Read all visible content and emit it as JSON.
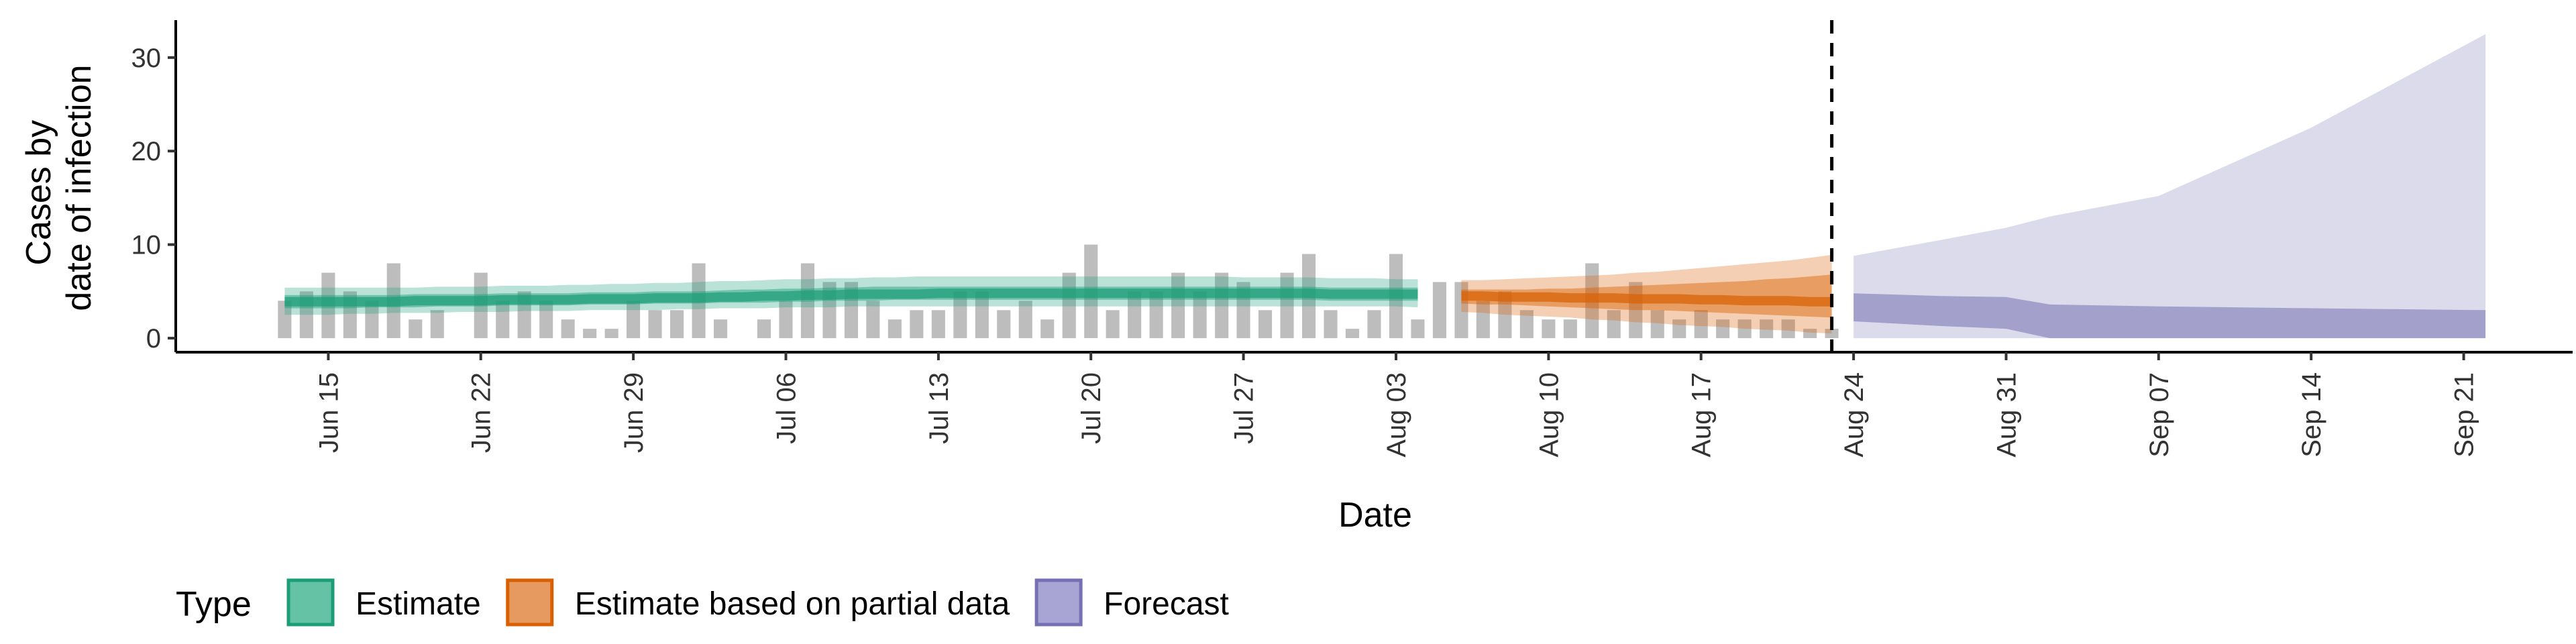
{
  "chart_data": {
    "type": "area",
    "xlabel": "Date",
    "ylabel_lines": [
      "Cases by",
      "date of infection"
    ],
    "x_range": [
      "2020-06-08",
      "2020-09-26"
    ],
    "ylim": [
      -1.5,
      34
    ],
    "yticks": [
      0,
      10,
      20,
      30
    ],
    "xticks": [
      {
        "date": "2020-06-15",
        "label": "Jun 15"
      },
      {
        "date": "2020-06-22",
        "label": "Jun 22"
      },
      {
        "date": "2020-06-29",
        "label": "Jun 29"
      },
      {
        "date": "2020-07-06",
        "label": "Jul 06"
      },
      {
        "date": "2020-07-13",
        "label": "Jul 13"
      },
      {
        "date": "2020-07-20",
        "label": "Jul 20"
      },
      {
        "date": "2020-07-27",
        "label": "Jul 27"
      },
      {
        "date": "2020-08-03",
        "label": "Aug 03"
      },
      {
        "date": "2020-08-10",
        "label": "Aug 10"
      },
      {
        "date": "2020-08-17",
        "label": "Aug 17"
      },
      {
        "date": "2020-08-24",
        "label": "Aug 24"
      },
      {
        "date": "2020-08-31",
        "label": "Aug 31"
      },
      {
        "date": "2020-09-07",
        "label": "Sep 07"
      },
      {
        "date": "2020-09-14",
        "label": "Sep 14"
      },
      {
        "date": "2020-09-21",
        "label": "Sep 21"
      }
    ],
    "forecast_start": "2020-08-23",
    "observed_cases": {
      "start_date": "2020-06-13",
      "color": "#bdbdbd",
      "values": [
        4,
        5,
        7,
        5,
        4,
        8,
        2,
        3,
        0,
        7,
        4,
        5,
        4,
        2,
        1,
        1,
        4,
        3,
        3,
        8,
        2,
        0,
        2,
        4,
        8,
        6,
        6,
        4,
        2,
        3,
        3,
        5,
        5,
        3,
        4,
        2,
        7,
        10,
        3,
        5,
        5,
        7,
        5,
        7,
        6,
        3,
        7,
        9,
        3,
        1,
        3,
        9,
        2,
        6,
        6,
        4,
        5,
        3,
        2,
        2,
        8,
        3,
        6,
        3,
        2,
        3,
        2,
        2,
        2,
        2,
        1,
        1
      ]
    },
    "series": [
      {
        "name": "Estimate",
        "color": "#1b9e77",
        "start_date": "2020-06-13",
        "median": [
          3.9,
          3.9,
          3.9,
          3.9,
          3.9,
          3.9,
          4.0,
          4.0,
          4.0,
          4.0,
          4.1,
          4.1,
          4.1,
          4.1,
          4.2,
          4.2,
          4.2,
          4.3,
          4.3,
          4.3,
          4.4,
          4.4,
          4.5,
          4.5,
          4.6,
          4.6,
          4.7,
          4.7,
          4.7,
          4.7,
          4.8,
          4.8,
          4.8,
          4.8,
          4.8,
          4.8,
          4.8,
          4.8,
          4.8,
          4.8,
          4.8,
          4.8,
          4.8,
          4.8,
          4.8,
          4.8,
          4.8,
          4.8,
          4.7,
          4.7,
          4.7,
          4.7,
          4.7
        ],
        "inner_lower": [
          3.2,
          3.2,
          3.2,
          3.2,
          3.3,
          3.3,
          3.3,
          3.4,
          3.4,
          3.4,
          3.5,
          3.5,
          3.5,
          3.5,
          3.6,
          3.6,
          3.6,
          3.7,
          3.7,
          3.7,
          3.8,
          3.8,
          3.8,
          3.9,
          3.9,
          4.0,
          4.0,
          4.0,
          4.1,
          4.1,
          4.1,
          4.1,
          4.1,
          4.1,
          4.1,
          4.1,
          4.1,
          4.1,
          4.1,
          4.1,
          4.1,
          4.1,
          4.1,
          4.1,
          4.1,
          4.1,
          4.1,
          4.1,
          4.0,
          4.0,
          4.0,
          4.0,
          4.0
        ],
        "inner_upper": [
          4.6,
          4.6,
          4.6,
          4.6,
          4.6,
          4.6,
          4.7,
          4.7,
          4.7,
          4.7,
          4.8,
          4.8,
          4.8,
          4.8,
          4.9,
          4.9,
          4.9,
          5.0,
          5.0,
          5.0,
          5.1,
          5.2,
          5.2,
          5.3,
          5.3,
          5.4,
          5.4,
          5.5,
          5.5,
          5.5,
          5.5,
          5.5,
          5.5,
          5.5,
          5.5,
          5.5,
          5.5,
          5.5,
          5.5,
          5.5,
          5.5,
          5.5,
          5.5,
          5.5,
          5.5,
          5.5,
          5.5,
          5.5,
          5.4,
          5.4,
          5.4,
          5.4,
          5.4
        ],
        "outer_lower": [
          2.5,
          2.5,
          2.5,
          2.6,
          2.6,
          2.7,
          2.7,
          2.7,
          2.8,
          2.8,
          2.8,
          2.9,
          2.9,
          2.9,
          3.0,
          3.0,
          3.0,
          3.0,
          3.1,
          3.1,
          3.2,
          3.2,
          3.2,
          3.3,
          3.3,
          3.3,
          3.4,
          3.4,
          3.4,
          3.4,
          3.4,
          3.4,
          3.4,
          3.4,
          3.4,
          3.4,
          3.4,
          3.4,
          3.4,
          3.4,
          3.4,
          3.4,
          3.4,
          3.4,
          3.4,
          3.4,
          3.4,
          3.4,
          3.4,
          3.4,
          3.4,
          3.4,
          3.3
        ],
        "outer_upper": [
          5.4,
          5.4,
          5.4,
          5.4,
          5.4,
          5.4,
          5.4,
          5.5,
          5.5,
          5.5,
          5.6,
          5.6,
          5.6,
          5.7,
          5.7,
          5.8,
          5.8,
          5.9,
          5.9,
          6.0,
          6.1,
          6.1,
          6.2,
          6.3,
          6.3,
          6.4,
          6.4,
          6.5,
          6.5,
          6.6,
          6.6,
          6.6,
          6.6,
          6.6,
          6.6,
          6.6,
          6.6,
          6.6,
          6.6,
          6.6,
          6.6,
          6.6,
          6.6,
          6.6,
          6.5,
          6.5,
          6.5,
          6.5,
          6.4,
          6.4,
          6.4,
          6.3,
          6.3
        ]
      },
      {
        "name": "Estimate based on partial data",
        "color": "#d95f02",
        "start_date": "2020-08-06",
        "median": [
          4.5,
          4.5,
          4.4,
          4.4,
          4.4,
          4.3,
          4.3,
          4.3,
          4.2,
          4.2,
          4.2,
          4.1,
          4.1,
          4.0,
          4.0,
          4.0,
          3.9,
          3.9
        ],
        "inner_lower": [
          3.7,
          3.6,
          3.6,
          3.5,
          3.4,
          3.3,
          3.2,
          3.1,
          3.0,
          3.0,
          2.9,
          2.8,
          2.7,
          2.6,
          2.5,
          2.4,
          2.3,
          2.2
        ],
        "inner_upper": [
          5.2,
          5.2,
          5.2,
          5.2,
          5.3,
          5.3,
          5.4,
          5.5,
          5.6,
          5.7,
          5.8,
          5.9,
          6.0,
          6.1,
          6.3,
          6.4,
          6.6,
          6.8
        ],
        "outer_lower": [
          2.8,
          2.7,
          2.5,
          2.4,
          2.3,
          2.2,
          2.0,
          1.9,
          1.7,
          1.6,
          1.4,
          1.3,
          1.2,
          1.0,
          0.9,
          0.8,
          0.6,
          0.5
        ],
        "outer_upper": [
          6.2,
          6.2,
          6.3,
          6.4,
          6.5,
          6.6,
          6.7,
          6.8,
          7.0,
          7.1,
          7.3,
          7.5,
          7.7,
          7.9,
          8.1,
          8.3,
          8.6,
          8.9
        ]
      },
      {
        "name": "Forecast",
        "color": "#7570b3",
        "points": [
          {
            "date": "2020-08-24",
            "inner_lower": 1.8,
            "inner_upper": 4.8,
            "outer_upper": 8.8
          },
          {
            "date": "2020-08-28",
            "inner_lower": 1.3,
            "inner_upper": 4.5,
            "outer_upper": 10.5
          },
          {
            "date": "2020-08-31",
            "inner_lower": 1.0,
            "inner_upper": 4.4,
            "outer_upper": 11.8
          },
          {
            "date": "2020-09-02",
            "inner_lower": 0.0,
            "inner_upper": 3.6,
            "outer_upper": 13.0
          },
          {
            "date": "2020-09-07",
            "inner_lower": 0.0,
            "inner_upper": 3.4,
            "outer_upper": 15.2
          },
          {
            "date": "2020-09-14",
            "inner_lower": 0.0,
            "inner_upper": 3.2,
            "outer_upper": 22.5
          },
          {
            "date": "2020-09-18",
            "inner_lower": 0.0,
            "inner_upper": 3.1,
            "outer_upper": 27.5
          },
          {
            "date": "2020-09-22",
            "inner_lower": 0.0,
            "inner_upper": 3.0,
            "outer_upper": 32.5
          }
        ]
      }
    ],
    "legend": {
      "title": "Type",
      "placement": "bottom",
      "entries": [
        {
          "label": "Estimate",
          "fill": "#66c2a5",
          "stroke": "#1b9e77"
        },
        {
          "label": "Estimate based on partial data",
          "fill": "#e69a5f",
          "stroke": "#d95f02"
        },
        {
          "label": "Forecast",
          "fill": "#a8a4d4",
          "stroke": "#7570b3"
        }
      ]
    },
    "grid": false
  }
}
